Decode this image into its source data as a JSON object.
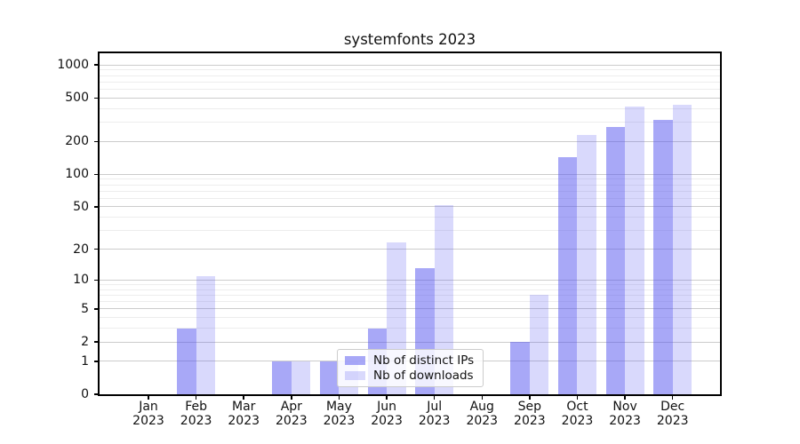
{
  "figure": {
    "title": "systemfonts 2023"
  },
  "legend": {
    "items": [
      {
        "label": "Nb of distinct IPs",
        "color": "rgba(82,82,240,0.50)"
      },
      {
        "label": "Nb of downloads",
        "color": "rgba(82,82,240,0.22)"
      }
    ]
  },
  "chart_data": {
    "type": "bar",
    "title": "systemfonts 2023",
    "categories": [
      "Jan 2023",
      "Feb 2023",
      "Mar 2023",
      "Apr 2023",
      "May 2023",
      "Jun 2023",
      "Jul 2023",
      "Aug 2023",
      "Sep 2023",
      "Oct 2023",
      "Nov 2023",
      "Dec 2023"
    ],
    "series": [
      {
        "name": "Nb of distinct IPs",
        "color": "rgba(82,82,240,0.50)",
        "values": [
          0,
          3,
          0,
          1,
          1,
          3,
          13,
          0,
          2,
          145,
          270,
          317
        ]
      },
      {
        "name": "Nb of downloads",
        "color": "rgba(82,82,240,0.22)",
        "values": [
          0,
          11,
          0,
          1,
          1,
          23,
          52,
          0,
          7,
          230,
          420,
          430
        ]
      }
    ],
    "yscale": "log1p",
    "ylim": [
      0,
      1100
    ],
    "yticks": [
      0,
      1,
      2,
      5,
      10,
      20,
      50,
      100,
      200,
      500,
      1000
    ],
    "minor_yticks": [
      3,
      4,
      6,
      7,
      8,
      9,
      30,
      40,
      60,
      70,
      80,
      90,
      300,
      400,
      600,
      700,
      800,
      900
    ],
    "grid": true,
    "legend_position": "inside lower-center",
    "colors": {
      "major_grid": "#cccccc",
      "minor_grid": "#ededed",
      "spine": "#000000",
      "text": "#111111"
    }
  }
}
